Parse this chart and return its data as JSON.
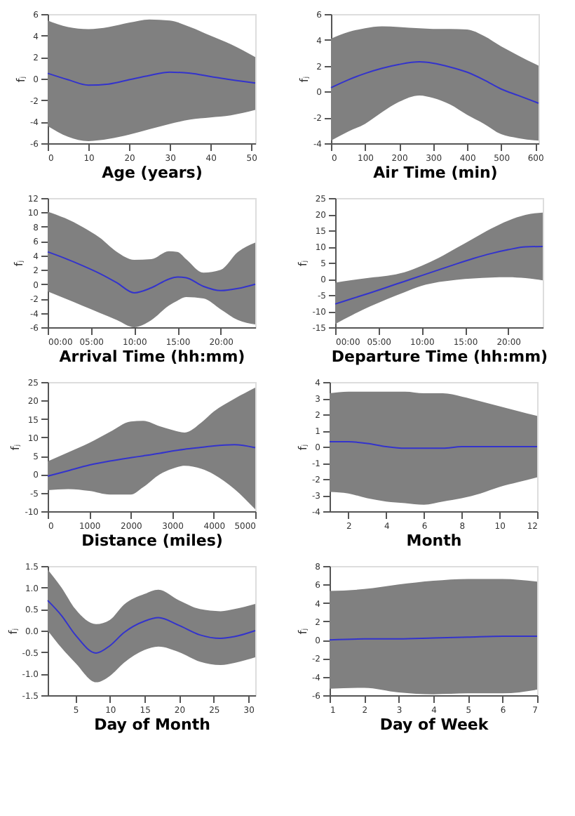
{
  "chart_data": [
    {
      "type": "line",
      "xlabel": "Age (years)",
      "ylabel": "fⱼ",
      "x": [
        0,
        5,
        10,
        15,
        20,
        25,
        30,
        35,
        40,
        45,
        51
      ],
      "xlim": [
        0,
        51
      ],
      "xticks": [
        0,
        10,
        20,
        30,
        40,
        50
      ],
      "ylim": [
        -6,
        6
      ],
      "yticks": [
        -6,
        -4,
        -2,
        0,
        2,
        4,
        6
      ],
      "grid": false,
      "series": [
        {
          "color": "#3333cc",
          "values": [
            0.5,
            -0.1,
            -0.6,
            -0.5,
            -0.1,
            0.3,
            0.6,
            0.5,
            0.2,
            -0.1,
            -0.4
          ],
          "upper": [
            5.4,
            4.8,
            4.6,
            4.8,
            5.2,
            5.5,
            5.4,
            4.8,
            4.0,
            3.2,
            2.0
          ],
          "lower": [
            -4.4,
            -5.4,
            -5.8,
            -5.6,
            -5.2,
            -4.7,
            -4.2,
            -3.8,
            -3.6,
            -3.4,
            -2.9
          ]
        }
      ]
    },
    {
      "type": "line",
      "xlabel": "Air Time (min)",
      "ylabel": "fⱼ",
      "x": [
        0,
        50,
        100,
        150,
        200,
        260,
        300,
        350,
        400,
        450,
        500,
        550,
        610
      ],
      "xlim": [
        0,
        610
      ],
      "xticks": [
        0,
        100,
        200,
        300,
        400,
        500,
        600
      ],
      "ylim": [
        -4,
        6
      ],
      "yticks": [
        -4,
        -2,
        0,
        2,
        4,
        6
      ],
      "grid": false,
      "series": [
        {
          "color": "#3333cc",
          "values": [
            0.3,
            0.9,
            1.4,
            1.8,
            2.1,
            2.3,
            2.2,
            1.9,
            1.5,
            0.9,
            0.2,
            -0.3,
            -0.9
          ],
          "upper": [
            4.1,
            4.6,
            4.9,
            5.05,
            5.0,
            4.9,
            4.85,
            4.85,
            4.8,
            4.3,
            3.5,
            2.8,
            2.0
          ],
          "lower": [
            -3.8,
            -3.1,
            -2.5,
            -1.6,
            -0.8,
            -0.3,
            -0.5,
            -1.0,
            -1.8,
            -2.5,
            -3.3,
            -3.6,
            -3.8
          ]
        }
      ]
    },
    {
      "type": "line",
      "xlabel": "Arrival Time (hh:mm)",
      "ylabel": "fⱼ",
      "x": [
        0,
        2,
        4,
        6,
        8,
        10,
        12,
        14,
        15,
        16,
        18,
        20,
        22,
        24
      ],
      "xlim": [
        0,
        24
      ],
      "xticks": [
        {
          "value": 0,
          "label": "00:00"
        },
        {
          "value": 5,
          "label": "05:00"
        },
        {
          "value": 10,
          "label": "10:00"
        },
        {
          "value": 15,
          "label": "15:00"
        },
        {
          "value": 20,
          "label": "20:00"
        }
      ],
      "ylim": [
        -6,
        12
      ],
      "yticks": [
        -6,
        -4,
        -2,
        0,
        2,
        4,
        6,
        8,
        10,
        12
      ],
      "grid": false,
      "series": [
        {
          "color": "#3333cc",
          "values": [
            4.5,
            3.6,
            2.6,
            1.5,
            0.2,
            -1.2,
            -0.5,
            0.7,
            1.0,
            0.9,
            -0.3,
            -0.9,
            -0.6,
            0.0
          ],
          "upper": [
            10.1,
            9.2,
            8.0,
            6.5,
            4.5,
            3.4,
            3.5,
            4.6,
            4.5,
            3.5,
            1.6,
            2.0,
            4.5,
            5.8
          ],
          "lower": [
            -1.0,
            -2.0,
            -3.0,
            -4.0,
            -5.0,
            -6.0,
            -5.0,
            -3.0,
            -2.3,
            -1.8,
            -2.0,
            -3.5,
            -5.0,
            -5.6
          ]
        }
      ]
    },
    {
      "type": "line",
      "xlabel": "Departure Time (hh:mm)",
      "ylabel": "fⱼ",
      "x": [
        0,
        2,
        4,
        6,
        8,
        10,
        12,
        14,
        16,
        18,
        20,
        22,
        24
      ],
      "xlim": [
        0,
        24
      ],
      "xticks": [
        {
          "value": 0,
          "label": "00:00"
        },
        {
          "value": 5,
          "label": "05:00"
        },
        {
          "value": 10,
          "label": "10:00"
        },
        {
          "value": 15,
          "label": "15:00"
        },
        {
          "value": 20,
          "label": "20:00"
        }
      ],
      "ylim": [
        -15,
        25
      ],
      "yticks": [
        -15,
        -10,
        -5,
        0,
        5,
        10,
        15,
        20,
        25
      ],
      "grid": false,
      "series": [
        {
          "color": "#3333cc",
          "values": [
            -7.8,
            -6.1,
            -4.4,
            -2.6,
            -0.8,
            1.0,
            2.8,
            4.6,
            6.3,
            7.8,
            9.0,
            9.9,
            10.0
          ],
          "upper": [
            -1.2,
            -0.4,
            0.3,
            0.9,
            2.0,
            4.0,
            6.5,
            9.5,
            12.5,
            15.5,
            18.0,
            19.8,
            20.5
          ],
          "lower": [
            -14.0,
            -11.2,
            -8.6,
            -6.3,
            -4.2,
            -2.2,
            -1.0,
            -0.3,
            0.1,
            0.4,
            0.5,
            0.2,
            -0.5
          ]
        }
      ]
    },
    {
      "type": "line",
      "xlabel": "Distance (miles)",
      "ylabel": "fⱼ",
      "x": [
        0,
        500,
        1000,
        1500,
        2000,
        2300,
        2700,
        3000,
        3300,
        3700,
        4000,
        4500,
        5000
      ],
      "xlim": [
        0,
        5000
      ],
      "xticks": [
        0,
        1000,
        2000,
        3000,
        4000,
        5000
      ],
      "ylim": [
        -10,
        25
      ],
      "yticks": [
        -10,
        -5,
        0,
        5,
        10,
        15,
        20,
        25
      ],
      "grid": false,
      "series": [
        {
          "color": "#3333cc",
          "values": [
            -0.5,
            1.0,
            2.5,
            3.6,
            4.5,
            5.0,
            5.7,
            6.3,
            6.8,
            7.3,
            7.7,
            8.0,
            7.2
          ],
          "upper": [
            3.5,
            6.0,
            8.5,
            11.5,
            14.3,
            14.5,
            13.0,
            12.0,
            11.3,
            14.0,
            17.0,
            20.5,
            23.5
          ],
          "lower": [
            -4.3,
            -4.0,
            -4.5,
            -5.5,
            -5.5,
            -3.5,
            0.0,
            1.5,
            2.3,
            1.5,
            0.0,
            -4.0,
            -9.5
          ]
        }
      ]
    },
    {
      "type": "line",
      "xlabel": "Month",
      "ylabel": "fⱼ",
      "x": [
        1,
        2,
        3,
        4,
        5,
        6,
        7,
        8,
        9,
        10,
        11,
        12
      ],
      "xlim": [
        1,
        12
      ],
      "xticks": [
        2,
        4,
        6,
        8,
        10,
        12
      ],
      "ylim": [
        -4,
        4
      ],
      "yticks": [
        -4,
        -3,
        -2,
        -1,
        0,
        1,
        2,
        3,
        4
      ],
      "grid": false,
      "series": [
        {
          "color": "#3333cc",
          "values": [
            0.3,
            0.3,
            0.2,
            0.0,
            -0.1,
            -0.1,
            -0.1,
            0.0,
            0.0,
            0.0,
            0.0,
            0.0
          ],
          "upper": [
            3.3,
            3.4,
            3.4,
            3.4,
            3.4,
            3.3,
            3.3,
            3.1,
            2.8,
            2.5,
            2.2,
            1.9
          ],
          "lower": [
            -2.8,
            -2.9,
            -3.2,
            -3.4,
            -3.5,
            -3.6,
            -3.4,
            -3.2,
            -2.9,
            -2.5,
            -2.2,
            -1.9
          ]
        }
      ]
    },
    {
      "type": "line",
      "xlabel": "Day of Month",
      "ylabel": "fⱼ",
      "x": [
        1,
        3,
        5,
        8,
        10,
        12,
        15,
        17,
        20,
        23,
        26,
        28,
        31
      ],
      "xlim": [
        1,
        31
      ],
      "xticks": [
        5,
        10,
        15,
        20,
        25,
        30
      ],
      "ylim": [
        -1.5,
        1.5
      ],
      "yticks": [
        -1.5,
        {
          "value": -1,
          "label": "-1.0"
        },
        -0.5,
        {
          "value": 0,
          "label": "0.0"
        },
        0.5,
        {
          "value": 1,
          "label": "1.0"
        },
        1.5
      ],
      "grid": false,
      "series": [
        {
          "color": "#3333cc",
          "values": [
            0.7,
            0.35,
            -0.1,
            -0.52,
            -0.35,
            -0.05,
            0.22,
            0.3,
            0.12,
            -0.1,
            -0.18,
            -0.14,
            0.0
          ],
          "upper": [
            1.42,
            1.0,
            0.5,
            0.15,
            0.25,
            0.6,
            0.85,
            0.95,
            0.7,
            0.5,
            0.45,
            0.5,
            0.62
          ],
          "lower": [
            0.0,
            -0.4,
            -0.75,
            -1.2,
            -1.05,
            -0.75,
            -0.45,
            -0.37,
            -0.5,
            -0.72,
            -0.8,
            -0.75,
            -0.62
          ]
        }
      ]
    },
    {
      "type": "line",
      "xlabel": "Day of Week",
      "ylabel": "fⱼ",
      "x": [
        1,
        2,
        3,
        4,
        5,
        6,
        7
      ],
      "xlim": [
        1,
        7
      ],
      "xticks": [
        1,
        2,
        3,
        4,
        5,
        6,
        7
      ],
      "ylim": [
        -6,
        8
      ],
      "yticks": [
        -6,
        -4,
        -2,
        0,
        2,
        4,
        6,
        8
      ],
      "grid": false,
      "series": [
        {
          "color": "#3333cc",
          "values": [
            0.0,
            0.1,
            0.1,
            0.2,
            0.3,
            0.4,
            0.4
          ],
          "upper": [
            5.3,
            5.5,
            6.0,
            6.4,
            6.6,
            6.6,
            6.3
          ],
          "lower": [
            -5.3,
            -5.2,
            -5.7,
            -5.9,
            -5.8,
            -5.8,
            -5.4
          ]
        }
      ]
    }
  ]
}
